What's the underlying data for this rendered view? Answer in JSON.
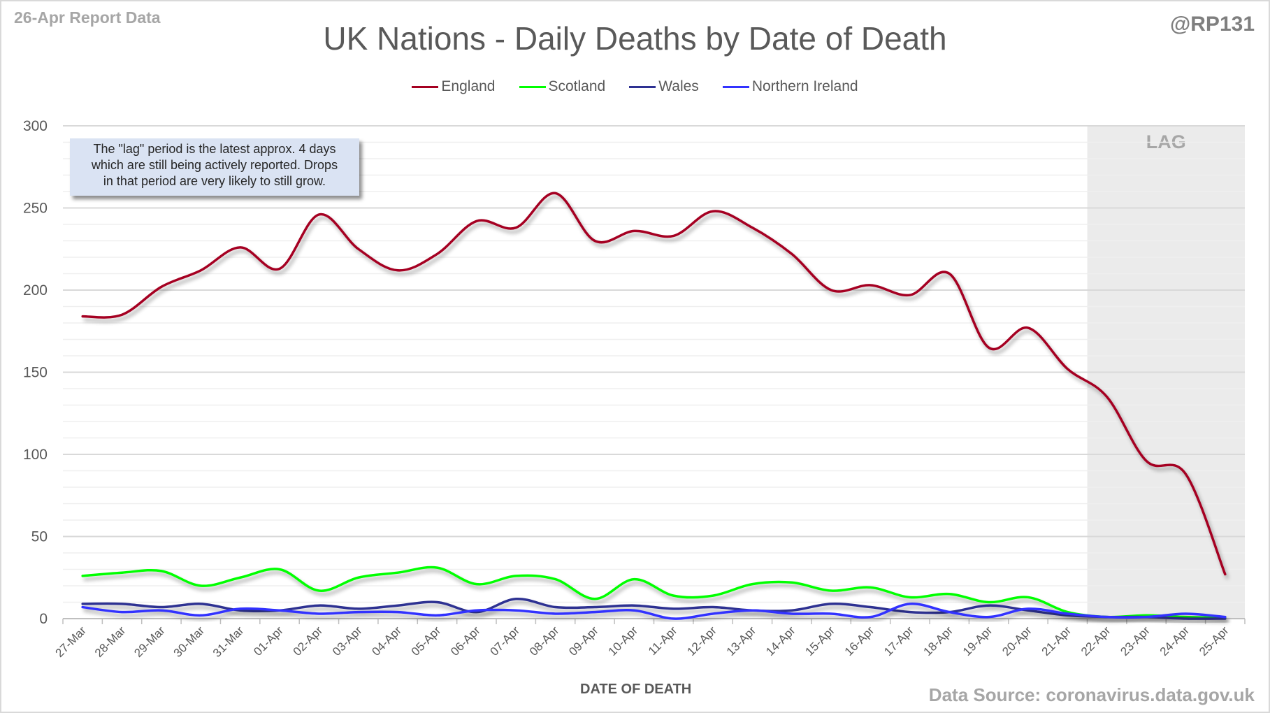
{
  "header": {
    "report_label": "26-Apr Report Data",
    "handle": "@RP131",
    "source": "Data Source: coronavirus.data.gov.uk"
  },
  "annotation": {
    "lines": [
      "The \"lag\" period is the latest approx. 4 days",
      "which are still being actively reported. Drops",
      "in that period are very likely to still grow."
    ]
  },
  "chart_data": {
    "type": "line",
    "title": "UK Nations - Daily Deaths by Date of Death",
    "xlabel": "DATE OF DEATH",
    "ylabel": "",
    "ylim": [
      0,
      300
    ],
    "yticks": [
      0,
      50,
      100,
      150,
      200,
      250,
      300
    ],
    "ytick_labels": [
      "0",
      "50",
      "100",
      "150",
      "200",
      "250",
      "300"
    ],
    "minor_grid_step": 10,
    "grid": true,
    "smoothed": true,
    "legend_position": "top",
    "categories": [
      "27-Mar",
      "28-Mar",
      "29-Mar",
      "30-Mar",
      "31-Mar",
      "01-Apr",
      "02-Apr",
      "03-Apr",
      "04-Apr",
      "05-Apr",
      "06-Apr",
      "07-Apr",
      "08-Apr",
      "09-Apr",
      "10-Apr",
      "11-Apr",
      "12-Apr",
      "13-Apr",
      "14-Apr",
      "15-Apr",
      "16-Apr",
      "17-Apr",
      "18-Apr",
      "19-Apr",
      "20-Apr",
      "21-Apr",
      "22-Apr",
      "23-Apr",
      "24-Apr",
      "25-Apr"
    ],
    "lag_region": {
      "label": "LAG",
      "start": "22-Apr",
      "end": "25-Apr",
      "color": "#ebebeb"
    },
    "series": [
      {
        "name": "England",
        "color": "#a50021",
        "values": [
          184,
          185,
          202,
          212,
          226,
          213,
          246,
          225,
          212,
          222,
          242,
          238,
          259,
          230,
          236,
          233,
          248,
          238,
          222,
          200,
          203,
          197,
          210,
          165,
          177,
          152,
          135,
          96,
          88,
          27
        ]
      },
      {
        "name": "Scotland",
        "color": "#00ff00",
        "values": [
          26,
          28,
          29,
          20,
          25,
          30,
          17,
          25,
          28,
          31,
          21,
          26,
          24,
          12,
          24,
          14,
          14,
          21,
          22,
          17,
          19,
          13,
          15,
          10,
          13,
          4,
          1,
          2,
          1,
          0.5
        ]
      },
      {
        "name": "Wales",
        "color": "#2e3192",
        "values": [
          9,
          9,
          7,
          9,
          5,
          5,
          8,
          6,
          8,
          10,
          4,
          12,
          7,
          7,
          8,
          6,
          7,
          5,
          5,
          9,
          7,
          4,
          4,
          8,
          5,
          2,
          1,
          1,
          0,
          0
        ]
      },
      {
        "name": "Northern Ireland",
        "color": "#3333ff",
        "values": [
          7,
          4,
          5,
          2,
          6,
          5,
          3,
          4,
          4,
          2,
          5,
          5,
          3,
          4,
          5,
          0,
          3,
          5,
          3,
          3,
          1,
          9,
          4,
          1,
          6,
          3,
          1,
          1,
          3,
          1
        ]
      }
    ]
  }
}
